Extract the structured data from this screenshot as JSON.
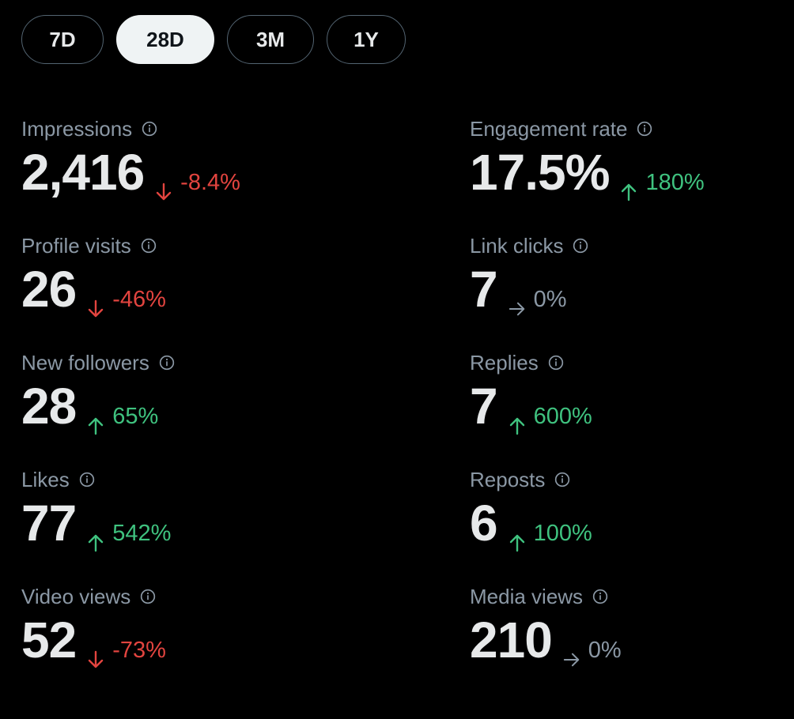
{
  "tabs": [
    {
      "label": "7D",
      "active": false
    },
    {
      "label": "28D",
      "active": true
    },
    {
      "label": "3M",
      "active": false
    },
    {
      "label": "1Y",
      "active": false
    }
  ],
  "metrics": {
    "impressions": {
      "label": "Impressions",
      "value": "2,416",
      "change": "-8.4%",
      "trend": "down"
    },
    "engagement_rate": {
      "label": "Engagement rate",
      "value": "17.5%",
      "change": "180%",
      "trend": "up"
    },
    "profile_visits": {
      "label": "Profile visits",
      "value": "26",
      "change": "-46%",
      "trend": "down"
    },
    "link_clicks": {
      "label": "Link clicks",
      "value": "7",
      "change": "0%",
      "trend": "flat"
    },
    "new_followers": {
      "label": "New followers",
      "value": "28",
      "change": "65%",
      "trend": "up"
    },
    "replies": {
      "label": "Replies",
      "value": "7",
      "change": "600%",
      "trend": "up"
    },
    "likes": {
      "label": "Likes",
      "value": "77",
      "change": "542%",
      "trend": "up"
    },
    "reposts": {
      "label": "Reposts",
      "value": "6",
      "change": "100%",
      "trend": "up"
    },
    "video_views": {
      "label": "Video views",
      "value": "52",
      "change": "-73%",
      "trend": "down"
    },
    "media_views": {
      "label": "Media views",
      "value": "210",
      "change": "0%",
      "trend": "flat"
    }
  },
  "colors": {
    "background": "#000000",
    "label": "#8b98a5",
    "value": "#e7e9ea",
    "negative": "#e2443f",
    "positive": "#3fc27f",
    "neutral": "#8b98a5",
    "active_tab_bg": "#eff3f4",
    "tab_border": "#536471"
  },
  "icons": {
    "info": "info-circle-icon",
    "down": "arrow-down-icon",
    "up": "arrow-up-icon",
    "flat": "arrow-right-icon"
  }
}
